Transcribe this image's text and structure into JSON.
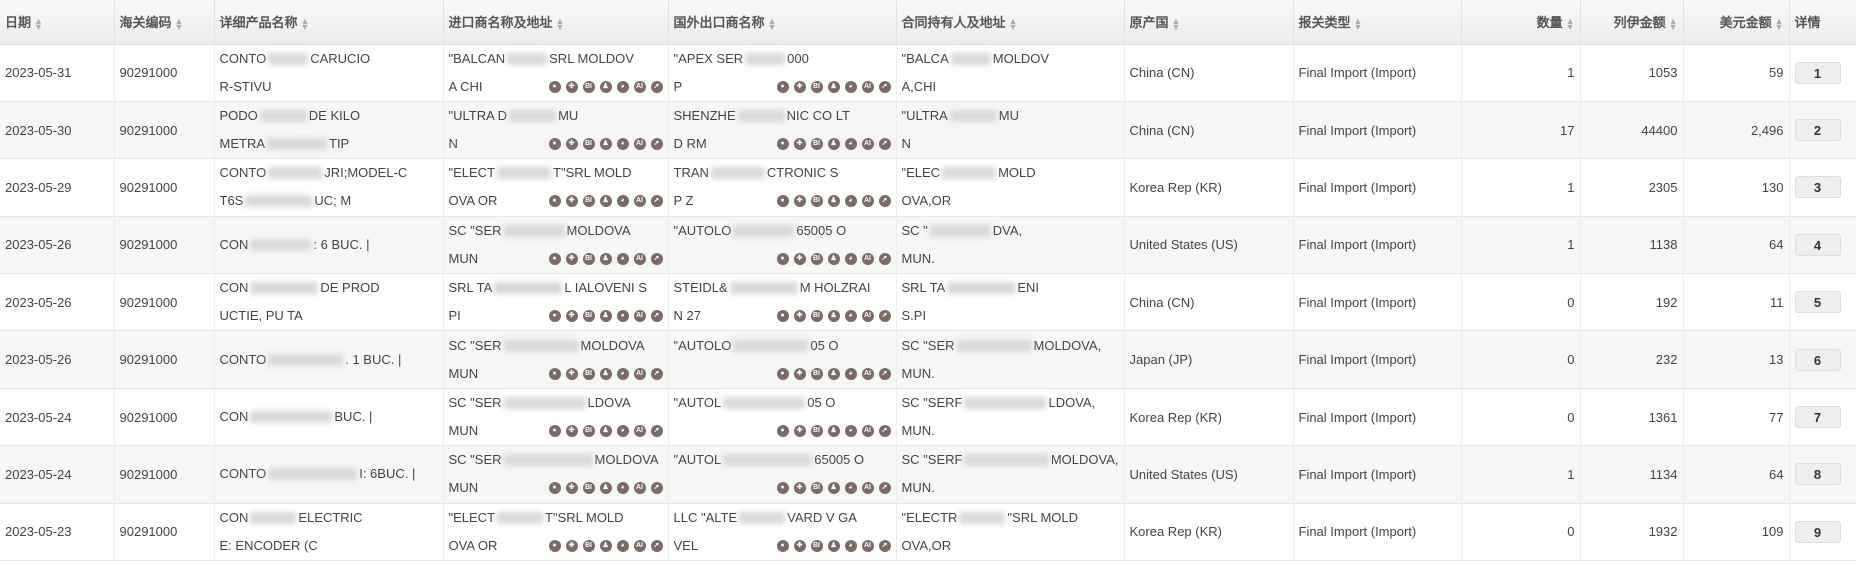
{
  "columns": [
    {
      "label": "日期",
      "sort": true
    },
    {
      "label": "海关编码",
      "sort": true
    },
    {
      "label": "详细产品名称",
      "sort": true
    },
    {
      "label": "进口商名称及地址",
      "sort": true
    },
    {
      "label": "国外出口商名称",
      "sort": true
    },
    {
      "label": "合同持有人及地址",
      "sort": true
    },
    {
      "label": "原产国",
      "sort": true
    },
    {
      "label": "报关类型",
      "sort": true
    },
    {
      "label": "数量",
      "sort": true,
      "right": true
    },
    {
      "label": "列伊金额",
      "sort": true,
      "right": true
    },
    {
      "label": "美元金额",
      "sort": true,
      "right": true
    },
    {
      "label": "详情",
      "sort": false
    }
  ],
  "icon_names": [
    "map-pin-icon",
    "person-add-icon",
    "bi-icon",
    "org-chart-icon",
    "globe-icon",
    "ai-icon",
    "arrow-icon"
  ],
  "icon_glyphs": [
    "●",
    "✚",
    "BI",
    "♟",
    "◕",
    "AI",
    "➚"
  ],
  "icon_color": "#7b6a66",
  "rows": [
    {
      "date": "2023-05-31",
      "code": "90291000",
      "product": [
        [
          "CONTO",
          "CARUCIO"
        ],
        [
          "R-STIVU",
          ""
        ]
      ],
      "importer": [
        [
          "\"BALCAN",
          "SRL MOLDOV"
        ],
        [
          "A CHI",
          ""
        ]
      ],
      "exporter": [
        [
          "\"APEX SER",
          "000"
        ],
        [
          "P",
          ""
        ]
      ],
      "holder": [
        [
          "\"BALCA",
          "MOLDOV"
        ],
        [
          "A,CHI",
          ""
        ]
      ],
      "origin": "China (CN)",
      "type": "Final Import (Import)",
      "qty": "1",
      "lei": "1053",
      "usd": "59",
      "detail": "1"
    },
    {
      "date": "2023-05-30",
      "code": "90291000",
      "product": [
        [
          "PODO",
          "DE KILO"
        ],
        [
          "METRA",
          "TIP"
        ]
      ],
      "importer": [
        [
          "\"ULTRA D",
          "MU"
        ],
        [
          "N",
          ""
        ]
      ],
      "exporter": [
        [
          "SHENZHE",
          "NIC CO LT"
        ],
        [
          "D RM",
          ""
        ]
      ],
      "holder": [
        [
          "\"ULTRA",
          "MU"
        ],
        [
          "N",
          ""
        ]
      ],
      "origin": "China (CN)",
      "type": "Final Import (Import)",
      "qty": "17",
      "lei": "44400",
      "usd": "2,496",
      "detail": "2"
    },
    {
      "date": "2023-05-29",
      "code": "90291000",
      "product": [
        [
          "CONTO",
          "JRI;MODEL-C"
        ],
        [
          "T6S",
          "UC; M"
        ]
      ],
      "importer": [
        [
          "\"ELECT",
          "T\"SRL MOLD"
        ],
        [
          "OVA OR",
          ""
        ]
      ],
      "exporter": [
        [
          "TRAN",
          "CTRONIC S"
        ],
        [
          "P Z",
          ""
        ]
      ],
      "holder": [
        [
          "\"ELEC",
          "MOLD"
        ],
        [
          "OVA,OR",
          ""
        ]
      ],
      "origin": "Korea Rep (KR)",
      "type": "Final Import (Import)",
      "qty": "1",
      "lei": "2305",
      "usd": "130",
      "detail": "3"
    },
    {
      "date": "2023-05-26",
      "code": "90291000",
      "product": [
        [
          "CON",
          ": 6 BUC. |"
        ]
      ],
      "importer": [
        [
          "SC \"SER",
          "MOLDOVA"
        ],
        [
          "MUN",
          ""
        ]
      ],
      "exporter": [
        [
          "\"AUTOLO",
          "65005 O"
        ],
        [
          "",
          ""
        ]
      ],
      "holder": [
        [
          "SC \"",
          "DVA,"
        ],
        [
          "MUN.",
          ""
        ]
      ],
      "origin": "United States (US)",
      "type": "Final Import (Import)",
      "qty": "1",
      "lei": "1138",
      "usd": "64",
      "detail": "4"
    },
    {
      "date": "2023-05-26",
      "code": "90291000",
      "product": [
        [
          "CON",
          "DE PROD"
        ],
        [
          "UCTIE, PU TA",
          ""
        ]
      ],
      "importer": [
        [
          "SRL TA",
          "L IALOVENI S"
        ],
        [
          "PI",
          ""
        ]
      ],
      "exporter": [
        [
          "STEIDL&",
          "M HOLZRAI"
        ],
        [
          "N 27",
          ""
        ]
      ],
      "holder": [
        [
          "SRL TA",
          "ENI"
        ],
        [
          "S.PI",
          ""
        ]
      ],
      "origin": "China (CN)",
      "type": "Final Import (Import)",
      "qty": "0",
      "lei": "192",
      "usd": "11",
      "detail": "5"
    },
    {
      "date": "2023-05-26",
      "code": "90291000",
      "product": [
        [
          "CONTO",
          ". 1 BUC. |"
        ]
      ],
      "importer": [
        [
          "SC \"SER",
          "MOLDOVA"
        ],
        [
          "MUN",
          ""
        ]
      ],
      "exporter": [
        [
          "\"AUTOLO",
          "05 O"
        ],
        [
          "",
          ""
        ]
      ],
      "holder": [
        [
          "SC \"SER",
          "MOLDOVA,"
        ],
        [
          "MUN.",
          ""
        ]
      ],
      "origin": "Japan (JP)",
      "type": "Final Import (Import)",
      "qty": "0",
      "lei": "232",
      "usd": "13",
      "detail": "6"
    },
    {
      "date": "2023-05-24",
      "code": "90291000",
      "product": [
        [
          "CON",
          "BUC. |"
        ]
      ],
      "importer": [
        [
          "SC \"SER",
          "LDOVA"
        ],
        [
          "MUN",
          ""
        ]
      ],
      "exporter": [
        [
          "\"AUTOL",
          "05 O"
        ],
        [
          "",
          ""
        ]
      ],
      "holder": [
        [
          "SC \"SERF",
          "LDOVA,"
        ],
        [
          "MUN.",
          ""
        ]
      ],
      "origin": "Korea Rep (KR)",
      "type": "Final Import (Import)",
      "qty": "0",
      "lei": "1361",
      "usd": "77",
      "detail": "7"
    },
    {
      "date": "2023-05-24",
      "code": "90291000",
      "product": [
        [
          "CONTO",
          "I: 6BUC. |"
        ]
      ],
      "importer": [
        [
          "SC \"SER",
          "MOLDOVA"
        ],
        [
          "MUN",
          ""
        ]
      ],
      "exporter": [
        [
          "\"AUTOL",
          "65005 O"
        ],
        [
          "",
          ""
        ]
      ],
      "holder": [
        [
          "SC \"SERF",
          "MOLDOVA,"
        ],
        [
          "MUN.",
          ""
        ]
      ],
      "origin": "United States (US)",
      "type": "Final Import (Import)",
      "qty": "1",
      "lei": "1134",
      "usd": "64",
      "detail": "8"
    },
    {
      "date": "2023-05-23",
      "code": "90291000",
      "product": [
        [
          "CON",
          "ELECTRIC"
        ],
        [
          "E: ENCODER (C",
          ""
        ]
      ],
      "importer": [
        [
          "\"ELECT",
          "T\"SRL MOLD"
        ],
        [
          "OVA OR",
          ""
        ]
      ],
      "exporter": [
        [
          "LLC \"ALTE",
          "VARD V GA"
        ],
        [
          "VEL",
          ""
        ]
      ],
      "holder": [
        [
          "\"ELECTR",
          "\"SRL MOLD"
        ],
        [
          "OVA,OR",
          ""
        ]
      ],
      "origin": "Korea Rep (KR)",
      "type": "Final Import (Import)",
      "qty": "0",
      "lei": "1932",
      "usd": "109",
      "detail": "9"
    }
  ]
}
